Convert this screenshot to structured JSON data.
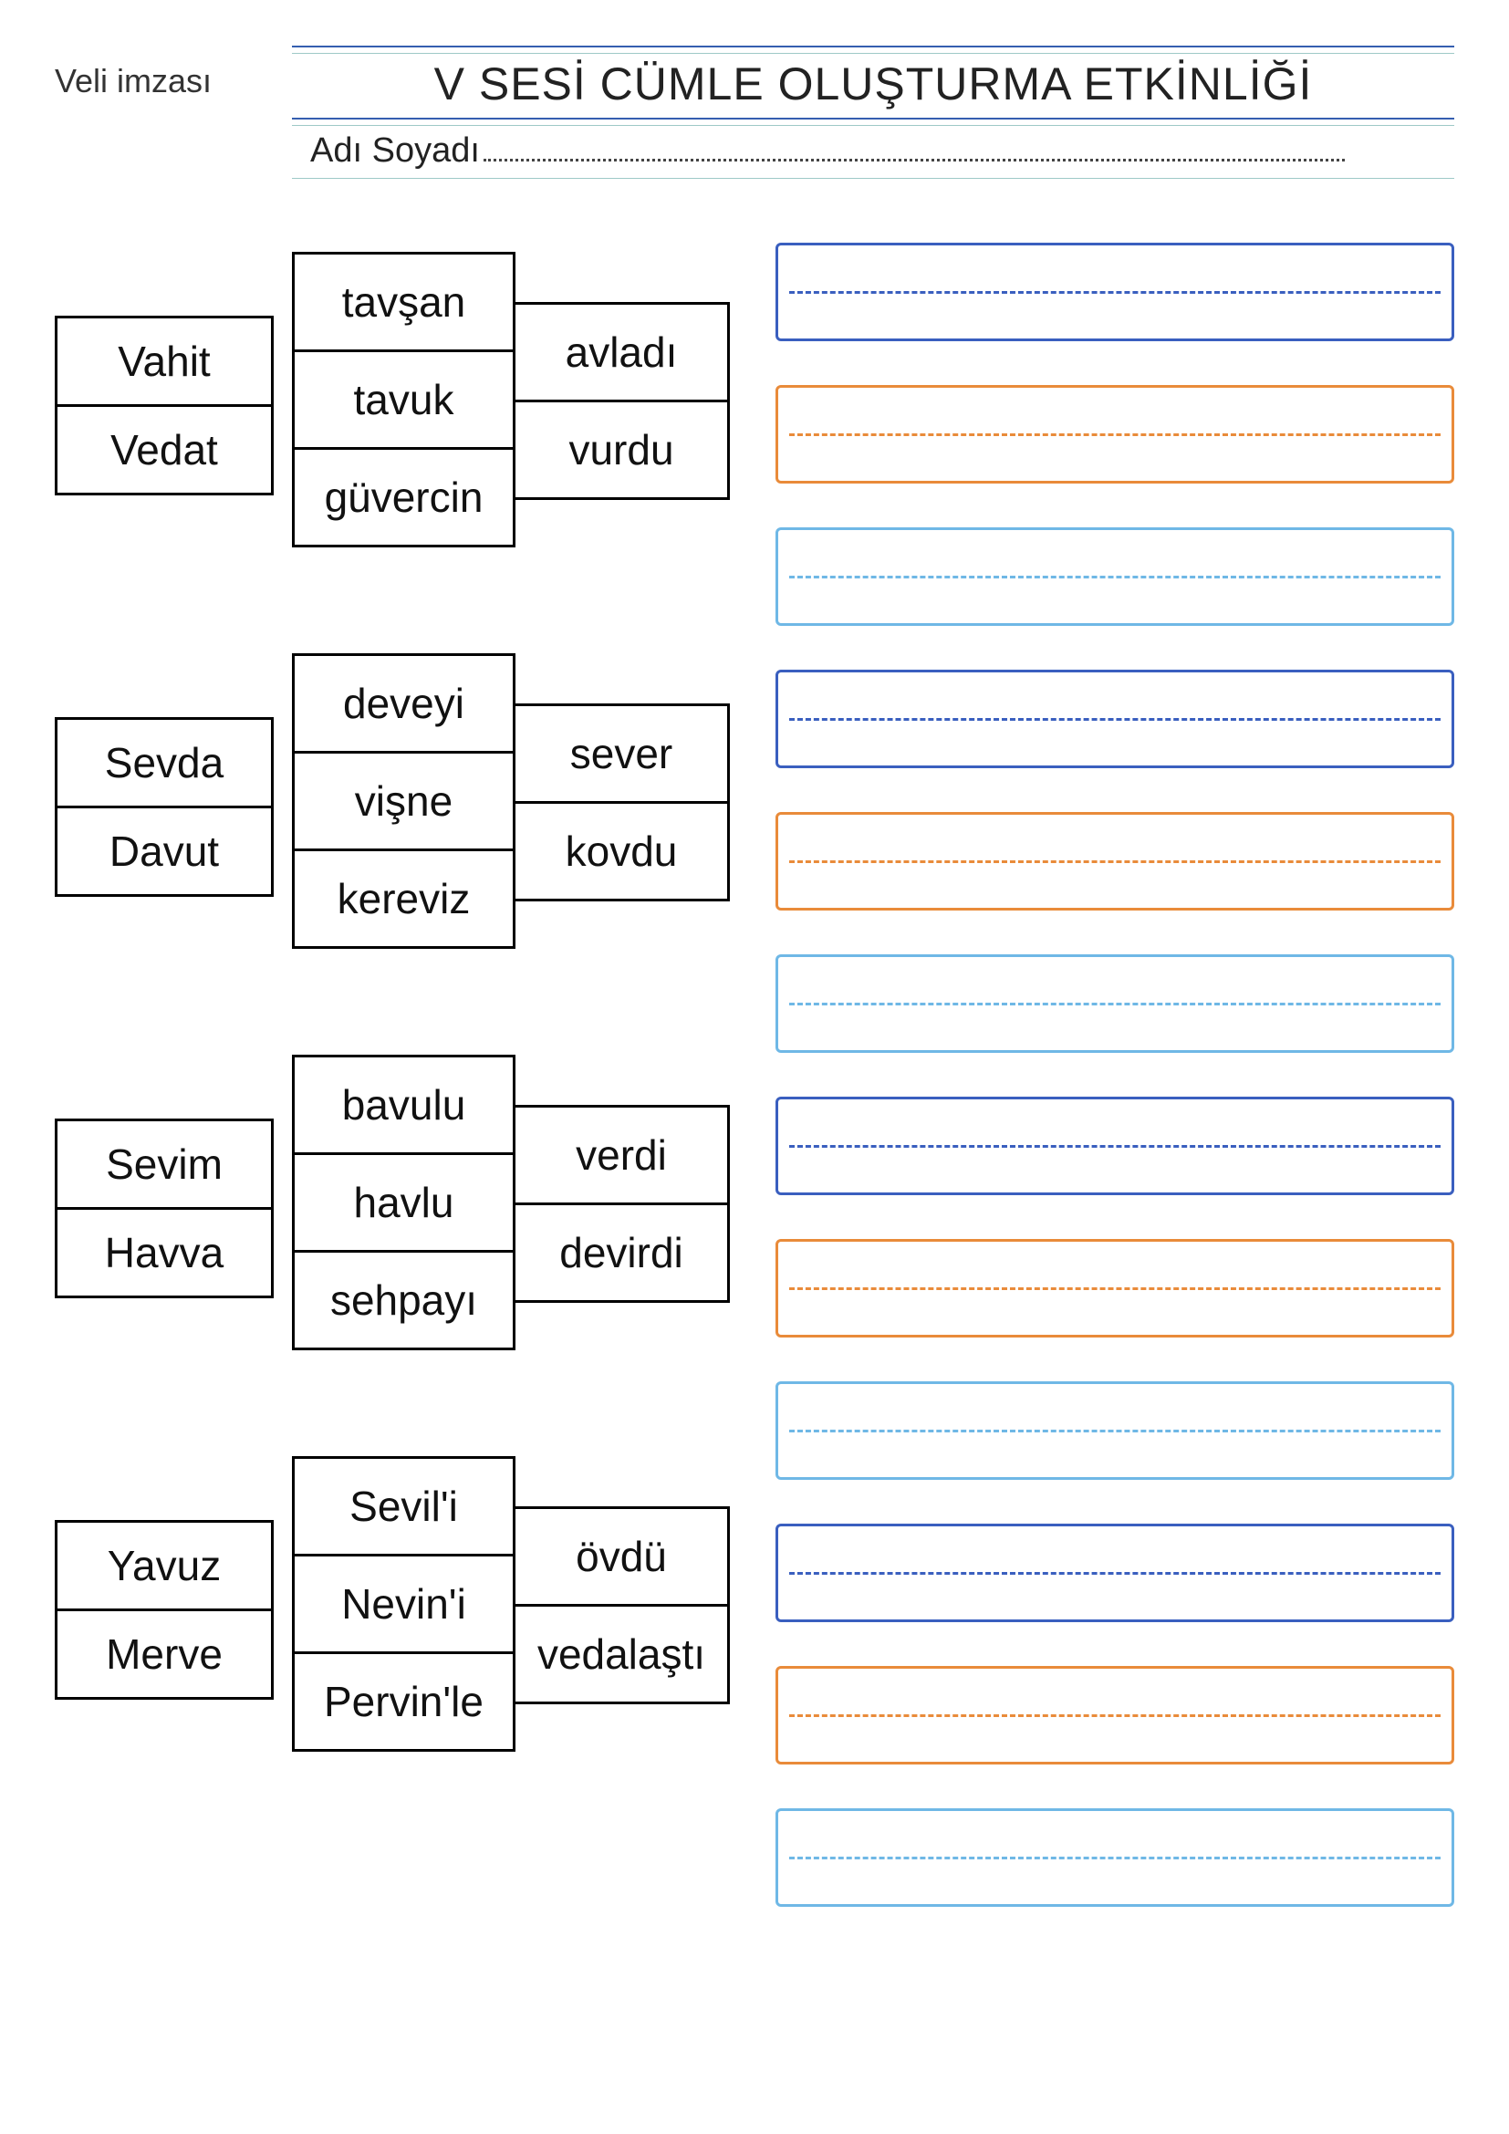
{
  "header": {
    "veli": "Veli imzası",
    "title": "V SESİ CÜMLE OLUŞTURMA ETKİNLİĞİ",
    "name_label": "Adı Soyadı"
  },
  "colors": {
    "blue": "#3a5fbf",
    "orange": "#e98b3a",
    "sky": "#6fb8e6"
  },
  "groups": [
    {
      "col1": [
        "Vahit",
        "Vedat"
      ],
      "col2": [
        "tavşan",
        "tavuk",
        "güvercin"
      ],
      "col3": [
        "avladı",
        "vurdu"
      ]
    },
    {
      "col1": [
        "Sevda",
        "Davut"
      ],
      "col2": [
        "deveyi",
        "vişne",
        "kereviz"
      ],
      "col3": [
        "sever",
        "kovdu"
      ]
    },
    {
      "col1": [
        "Sevim",
        "Havva"
      ],
      "col2": [
        "bavulu",
        "havlu",
        "sehpayı"
      ],
      "col3": [
        "verdi",
        "devirdi"
      ]
    },
    {
      "col1": [
        "Yavuz",
        "Merve"
      ],
      "col2": [
        "Sevil'i",
        "Nevin'i",
        "Pervin'le"
      ],
      "col3": [
        "övdü",
        "vedalaştı"
      ]
    }
  ],
  "answer_colors": [
    "blue",
    "orange",
    "sky",
    "blue",
    "orange",
    "sky",
    "blue",
    "orange",
    "sky",
    "blue",
    "orange",
    "sky"
  ]
}
